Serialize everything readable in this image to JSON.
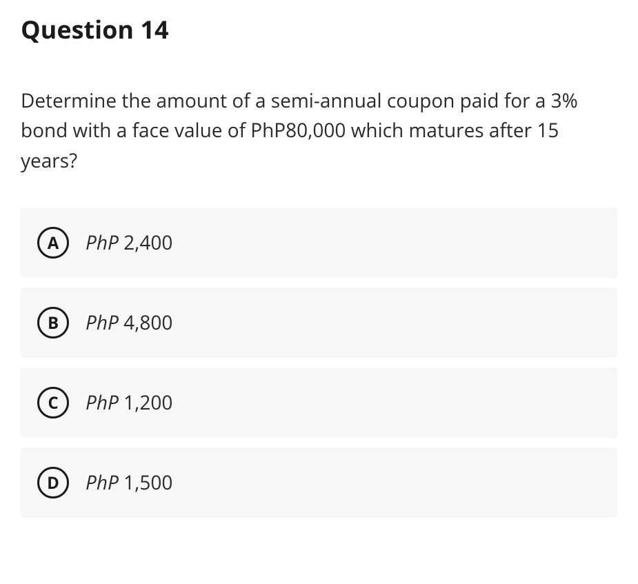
{
  "title": "Question 14",
  "prompt": "Determine the amount of a semi-annual coupon paid for a 3% bond with a face value of PhP80,000 which matures after 15 years?",
  "options": [
    {
      "letter": "A",
      "prefix": "PhP",
      "value": " 2,400"
    },
    {
      "letter": "B",
      "prefix": "PhP",
      "value": " 4,800"
    },
    {
      "letter": "C",
      "prefix": "PhP",
      "value": " 1,200"
    },
    {
      "letter": "D",
      "prefix": "PhP",
      "value": " 1,500"
    }
  ],
  "styling": {
    "background_color": "#ffffff",
    "option_background": "#f7f7f7",
    "text_color": "#1a1a1a",
    "body_text_color": "#2a2a2a",
    "circle_border_color": "#1a1a1a",
    "circle_border_width": 3,
    "title_fontsize": 36,
    "body_fontsize": 28,
    "option_fontsize": 28,
    "letter_fontsize": 24
  }
}
